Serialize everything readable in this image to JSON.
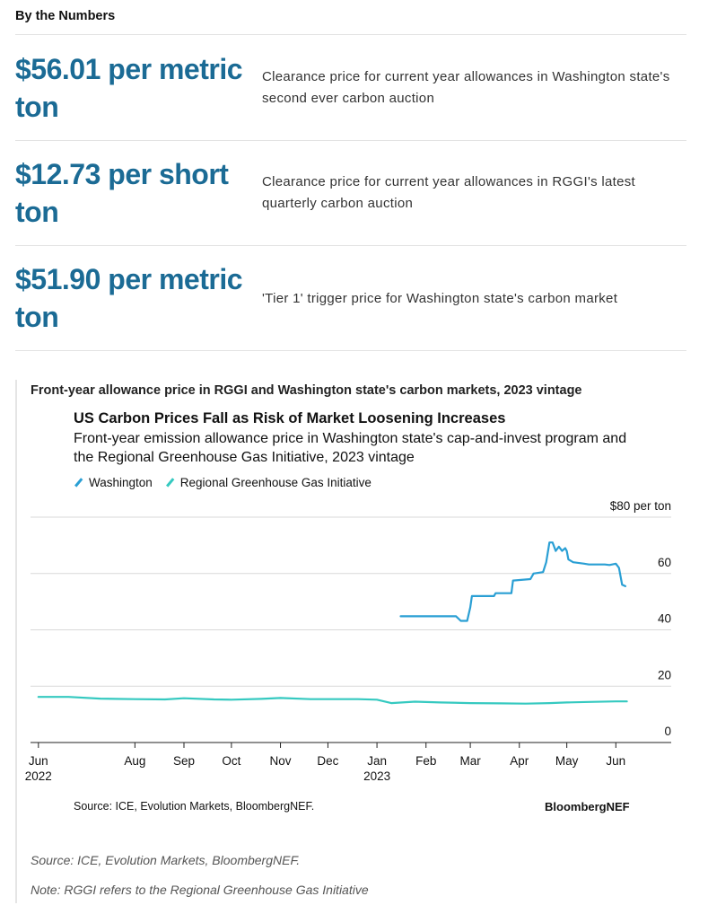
{
  "section_title": "By the Numbers",
  "stats": [
    {
      "value": "$56.01 per metric ton",
      "desc": "Clearance price for current year allowances in Washington state's second ever carbon auction"
    },
    {
      "value": "$12.73 per short ton",
      "desc": "Clearance price for current year allowances in RGGI's latest quarterly carbon auction"
    },
    {
      "value": "$51.90 per metric ton",
      "desc": "'Tier 1' trigger price for Washington state's carbon market"
    }
  ],
  "chart_heading": "Front-year allowance price in RGGI and Washington state's carbon markets, 2023 vintage",
  "chart_source_line": "Source: ICE, Evolution Markets, BloombergNEF.",
  "brand": "BloombergNEF",
  "footnotes": {
    "source": "Source: ICE, Evolution Markets, BloombergNEF.",
    "note": "Note: RGGI refers to the Regional Greenhouse Gas Initiative"
  },
  "colors": {
    "washington": "#2a9fd4",
    "rggi": "#35c9c0",
    "stat_value": "#1b6b95"
  },
  "chart_data": {
    "type": "line",
    "title": "US Carbon Prices Fall as Risk of Market Loosening Increases",
    "subtitle": "Front-year emission allowance price in Washington state's cap-and-invest program and the Regional Greenhouse Gas Initiative, 2023 vintage",
    "yunit_label": "$80 per ton",
    "ylim": [
      0,
      80
    ],
    "yticks": [
      {
        "value": 80,
        "label": "$80 per ton"
      },
      {
        "value": 60,
        "label": "60"
      },
      {
        "value": 40,
        "label": "40"
      },
      {
        "value": 20,
        "label": "20"
      },
      {
        "value": 0,
        "label": "0"
      }
    ],
    "xlim": [
      "2022-05-27",
      "2023-07-06"
    ],
    "xticks": [
      {
        "date": "2022-06-01",
        "label": "Jun",
        "year": "2022"
      },
      {
        "date": "2022-08-01",
        "label": "Aug"
      },
      {
        "date": "2022-09-01",
        "label": "Sep"
      },
      {
        "date": "2022-10-01",
        "label": "Oct"
      },
      {
        "date": "2022-11-01",
        "label": "Nov"
      },
      {
        "date": "2022-12-01",
        "label": "Dec"
      },
      {
        "date": "2023-01-01",
        "label": "Jan",
        "year": "2023"
      },
      {
        "date": "2023-02-01",
        "label": "Feb"
      },
      {
        "date": "2023-03-01",
        "label": "Mar"
      },
      {
        "date": "2023-04-01",
        "label": "Apr"
      },
      {
        "date": "2023-05-01",
        "label": "May"
      },
      {
        "date": "2023-06-01",
        "label": "Jun"
      }
    ],
    "grid": true,
    "legend_position": "top-left",
    "series": [
      {
        "name": "Washington",
        "color": "#2a9fd4",
        "points": [
          [
            "2023-01-16",
            44.8
          ],
          [
            "2023-02-20",
            44.8
          ],
          [
            "2023-02-23",
            43.2
          ],
          [
            "2023-02-27",
            43.2
          ],
          [
            "2023-03-01",
            48.0
          ],
          [
            "2023-03-02",
            52.0
          ],
          [
            "2023-03-16",
            52.0
          ],
          [
            "2023-03-17",
            53.0
          ],
          [
            "2023-03-27",
            53.0
          ],
          [
            "2023-03-28",
            57.5
          ],
          [
            "2023-04-08",
            58.0
          ],
          [
            "2023-04-10",
            60.0
          ],
          [
            "2023-04-16",
            60.5
          ],
          [
            "2023-04-18",
            64.0
          ],
          [
            "2023-04-20",
            71.0
          ],
          [
            "2023-04-22",
            71.0
          ],
          [
            "2023-04-24",
            68.0
          ],
          [
            "2023-04-26",
            69.5
          ],
          [
            "2023-04-28",
            68.0
          ],
          [
            "2023-04-30",
            69.0
          ],
          [
            "2023-05-01",
            68.0
          ],
          [
            "2023-05-02",
            65.0
          ],
          [
            "2023-05-05",
            64.0
          ],
          [
            "2023-05-12",
            63.5
          ],
          [
            "2023-05-15",
            63.2
          ],
          [
            "2023-05-25",
            63.2
          ],
          [
            "2023-05-28",
            63.0
          ],
          [
            "2023-06-01",
            63.5
          ],
          [
            "2023-06-03",
            62.0
          ],
          [
            "2023-06-05",
            56.0
          ],
          [
            "2023-06-07",
            55.5
          ]
        ]
      },
      {
        "name": "Regional Greenhouse Gas Initiative",
        "color": "#35c9c0",
        "points": [
          [
            "2022-06-01",
            16.2
          ],
          [
            "2022-06-20",
            16.2
          ],
          [
            "2022-07-10",
            15.6
          ],
          [
            "2022-08-01",
            15.4
          ],
          [
            "2022-08-20",
            15.3
          ],
          [
            "2022-09-01",
            15.7
          ],
          [
            "2022-09-20",
            15.3
          ],
          [
            "2022-10-01",
            15.2
          ],
          [
            "2022-10-20",
            15.5
          ],
          [
            "2022-11-01",
            15.8
          ],
          [
            "2022-11-20",
            15.4
          ],
          [
            "2022-12-01",
            15.4
          ],
          [
            "2022-12-20",
            15.4
          ],
          [
            "2023-01-01",
            15.2
          ],
          [
            "2023-01-10",
            14.0
          ],
          [
            "2023-01-25",
            14.5
          ],
          [
            "2023-02-10",
            14.2
          ],
          [
            "2023-03-01",
            14.0
          ],
          [
            "2023-03-20",
            13.9
          ],
          [
            "2023-04-05",
            13.8
          ],
          [
            "2023-04-20",
            14.0
          ],
          [
            "2023-05-01",
            14.2
          ],
          [
            "2023-05-15",
            14.4
          ],
          [
            "2023-06-01",
            14.6
          ],
          [
            "2023-06-08",
            14.6
          ]
        ]
      }
    ]
  }
}
